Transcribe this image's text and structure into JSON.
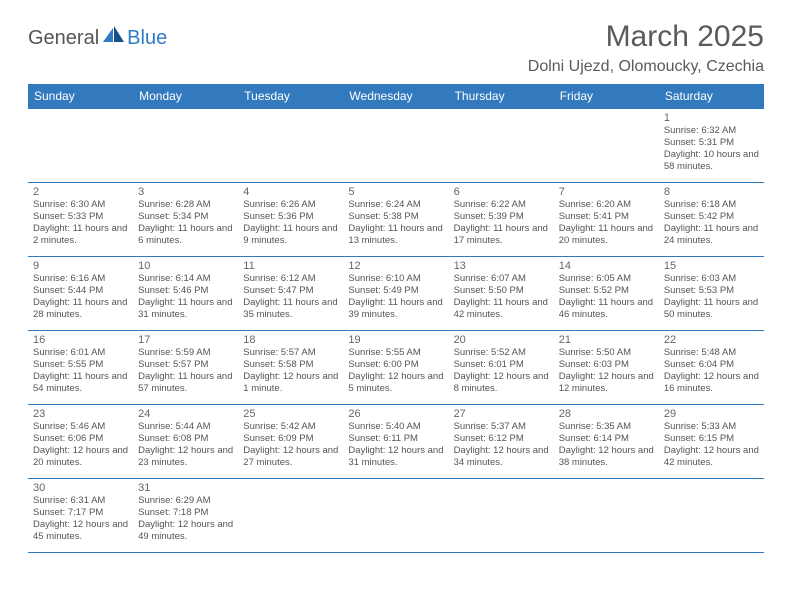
{
  "logo": {
    "general": "General",
    "blue": "Blue"
  },
  "title": "March 2025",
  "location": "Dolni Ujezd, Olomoucky, Czechia",
  "header_bg": "#3279bd",
  "header_fg": "#ffffff",
  "border_color": "#3279bd",
  "days_of_week": [
    "Sunday",
    "Monday",
    "Tuesday",
    "Wednesday",
    "Thursday",
    "Friday",
    "Saturday"
  ],
  "weeks": [
    [
      null,
      null,
      null,
      null,
      null,
      null,
      {
        "n": "1",
        "sunrise": "6:32 AM",
        "sunset": "5:31 PM",
        "daylight": "10 hours and 58 minutes."
      }
    ],
    [
      {
        "n": "2",
        "sunrise": "6:30 AM",
        "sunset": "5:33 PM",
        "daylight": "11 hours and 2 minutes."
      },
      {
        "n": "3",
        "sunrise": "6:28 AM",
        "sunset": "5:34 PM",
        "daylight": "11 hours and 6 minutes."
      },
      {
        "n": "4",
        "sunrise": "6:26 AM",
        "sunset": "5:36 PM",
        "daylight": "11 hours and 9 minutes."
      },
      {
        "n": "5",
        "sunrise": "6:24 AM",
        "sunset": "5:38 PM",
        "daylight": "11 hours and 13 minutes."
      },
      {
        "n": "6",
        "sunrise": "6:22 AM",
        "sunset": "5:39 PM",
        "daylight": "11 hours and 17 minutes."
      },
      {
        "n": "7",
        "sunrise": "6:20 AM",
        "sunset": "5:41 PM",
        "daylight": "11 hours and 20 minutes."
      },
      {
        "n": "8",
        "sunrise": "6:18 AM",
        "sunset": "5:42 PM",
        "daylight": "11 hours and 24 minutes."
      }
    ],
    [
      {
        "n": "9",
        "sunrise": "6:16 AM",
        "sunset": "5:44 PM",
        "daylight": "11 hours and 28 minutes."
      },
      {
        "n": "10",
        "sunrise": "6:14 AM",
        "sunset": "5:46 PM",
        "daylight": "11 hours and 31 minutes."
      },
      {
        "n": "11",
        "sunrise": "6:12 AM",
        "sunset": "5:47 PM",
        "daylight": "11 hours and 35 minutes."
      },
      {
        "n": "12",
        "sunrise": "6:10 AM",
        "sunset": "5:49 PM",
        "daylight": "11 hours and 39 minutes."
      },
      {
        "n": "13",
        "sunrise": "6:07 AM",
        "sunset": "5:50 PM",
        "daylight": "11 hours and 42 minutes."
      },
      {
        "n": "14",
        "sunrise": "6:05 AM",
        "sunset": "5:52 PM",
        "daylight": "11 hours and 46 minutes."
      },
      {
        "n": "15",
        "sunrise": "6:03 AM",
        "sunset": "5:53 PM",
        "daylight": "11 hours and 50 minutes."
      }
    ],
    [
      {
        "n": "16",
        "sunrise": "6:01 AM",
        "sunset": "5:55 PM",
        "daylight": "11 hours and 54 minutes."
      },
      {
        "n": "17",
        "sunrise": "5:59 AM",
        "sunset": "5:57 PM",
        "daylight": "11 hours and 57 minutes."
      },
      {
        "n": "18",
        "sunrise": "5:57 AM",
        "sunset": "5:58 PM",
        "daylight": "12 hours and 1 minute."
      },
      {
        "n": "19",
        "sunrise": "5:55 AM",
        "sunset": "6:00 PM",
        "daylight": "12 hours and 5 minutes."
      },
      {
        "n": "20",
        "sunrise": "5:52 AM",
        "sunset": "6:01 PM",
        "daylight": "12 hours and 8 minutes."
      },
      {
        "n": "21",
        "sunrise": "5:50 AM",
        "sunset": "6:03 PM",
        "daylight": "12 hours and 12 minutes."
      },
      {
        "n": "22",
        "sunrise": "5:48 AM",
        "sunset": "6:04 PM",
        "daylight": "12 hours and 16 minutes."
      }
    ],
    [
      {
        "n": "23",
        "sunrise": "5:46 AM",
        "sunset": "6:06 PM",
        "daylight": "12 hours and 20 minutes."
      },
      {
        "n": "24",
        "sunrise": "5:44 AM",
        "sunset": "6:08 PM",
        "daylight": "12 hours and 23 minutes."
      },
      {
        "n": "25",
        "sunrise": "5:42 AM",
        "sunset": "6:09 PM",
        "daylight": "12 hours and 27 minutes."
      },
      {
        "n": "26",
        "sunrise": "5:40 AM",
        "sunset": "6:11 PM",
        "daylight": "12 hours and 31 minutes."
      },
      {
        "n": "27",
        "sunrise": "5:37 AM",
        "sunset": "6:12 PM",
        "daylight": "12 hours and 34 minutes."
      },
      {
        "n": "28",
        "sunrise": "5:35 AM",
        "sunset": "6:14 PM",
        "daylight": "12 hours and 38 minutes."
      },
      {
        "n": "29",
        "sunrise": "5:33 AM",
        "sunset": "6:15 PM",
        "daylight": "12 hours and 42 minutes."
      }
    ],
    [
      {
        "n": "30",
        "sunrise": "6:31 AM",
        "sunset": "7:17 PM",
        "daylight": "12 hours and 45 minutes."
      },
      {
        "n": "31",
        "sunrise": "6:29 AM",
        "sunset": "7:18 PM",
        "daylight": "12 hours and 49 minutes."
      },
      null,
      null,
      null,
      null,
      null
    ]
  ],
  "labels": {
    "sunrise": "Sunrise: ",
    "sunset": "Sunset: ",
    "daylight": "Daylight: "
  }
}
